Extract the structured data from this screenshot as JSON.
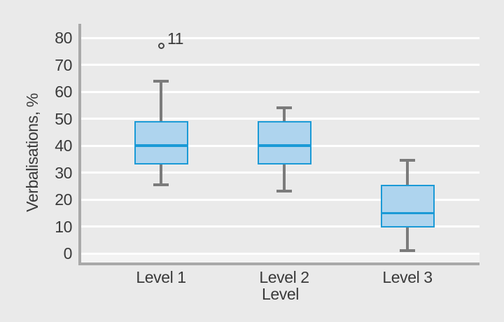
{
  "chart_data": {
    "type": "boxplot",
    "title": "",
    "xlabel": "Level",
    "ylabel": "Verbalisations, %",
    "ylim": [
      0,
      80
    ],
    "yticks": [
      0,
      10,
      20,
      30,
      40,
      50,
      60,
      70,
      80
    ],
    "categories": [
      "Level 1",
      "Level 2",
      "Level 3"
    ],
    "grid": {
      "horizontal": true,
      "vertical": false,
      "color": "#ffffff"
    },
    "legend": null,
    "series": [
      {
        "category": "Level 1",
        "whisker_low": 25.5,
        "q1": 33,
        "median": 40,
        "q3": 49,
        "whisker_high": 64,
        "outliers": [
          {
            "value": 77,
            "label": "11"
          }
        ]
      },
      {
        "category": "Level 2",
        "whisker_low": 23,
        "q1": 33,
        "median": 40,
        "q3": 49,
        "whisker_high": 54,
        "outliers": []
      },
      {
        "category": "Level 3",
        "whisker_low": 1,
        "q1": 9.5,
        "median": 15,
        "q3": 25.5,
        "whisker_high": 34.5,
        "outliers": []
      }
    ],
    "colors": {
      "background": "#eaeaea",
      "below_zero_band": "#f3f3f3",
      "gridline": "#ffffff",
      "axis_line": "#a9a9a9",
      "whisker": "#7b7b7b",
      "box_fill": "#aed4ee",
      "box_border": "#1b9ad6",
      "median": "#1b9ad6",
      "outlier": "#454545",
      "text": "#3a3a3a"
    }
  }
}
